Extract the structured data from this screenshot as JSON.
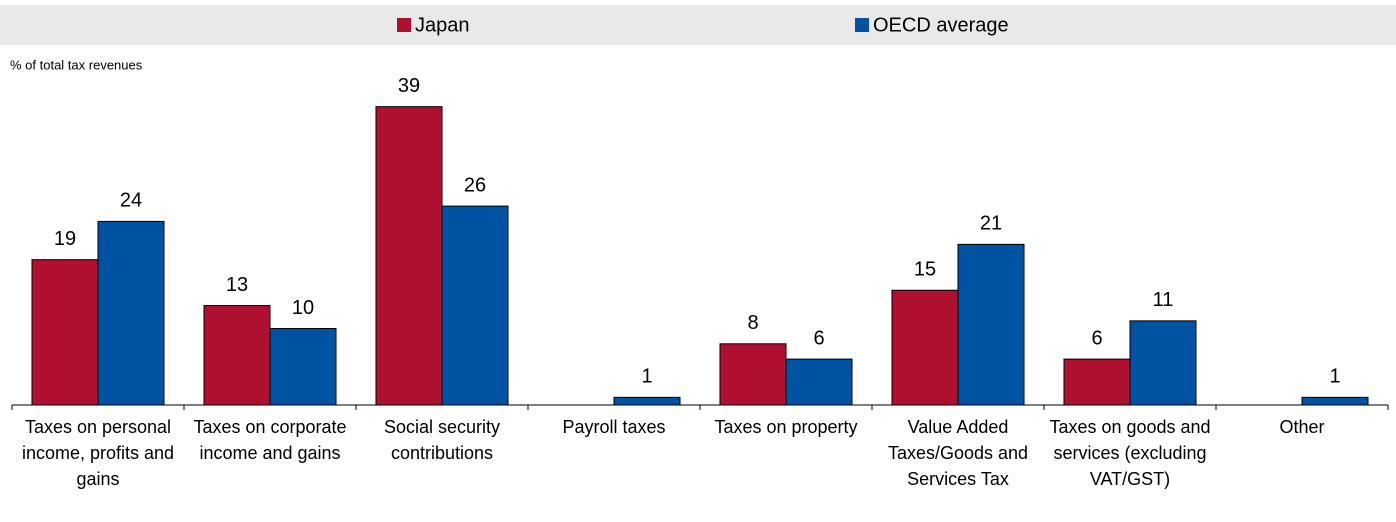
{
  "chart_data": {
    "type": "bar",
    "y_label": "% of total tax revenues",
    "categories": [
      "Taxes on personal income, profits and gains",
      "Taxes on corporate income and gains",
      "Social security contributions",
      "Payroll taxes",
      "Taxes on property",
      "Value Added Taxes/Goods and Services Tax",
      "Taxes on goods and services (excluding VAT/GST)",
      "Other"
    ],
    "series": [
      {
        "name": "Japan",
        "color": "#b01030",
        "values": [
          19,
          13,
          39,
          null,
          8,
          15,
          6,
          null
        ]
      },
      {
        "name": "OECD average",
        "color": "#0052a3",
        "values": [
          24,
          10,
          26,
          1,
          6,
          21,
          11,
          1
        ]
      }
    ],
    "ylim": [
      0,
      40
    ],
    "legend": "top"
  }
}
